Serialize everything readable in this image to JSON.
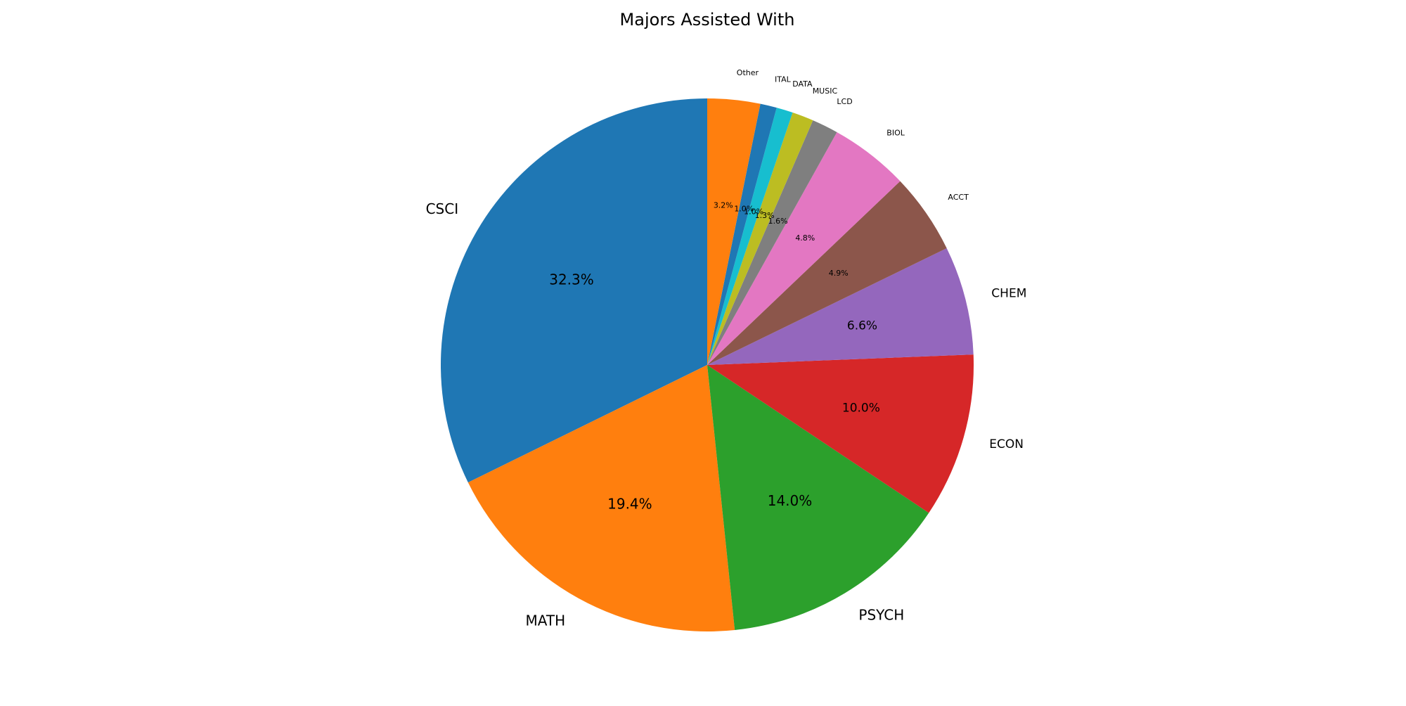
{
  "chart_data": {
    "type": "pie",
    "title": "Majors Assisted With",
    "start_angle_deg": 90,
    "direction": "counterclockwise",
    "legend": "none",
    "categories": [
      "CSCI",
      "MATH",
      "PSYCH",
      "ECON",
      "CHEM",
      "ACCT",
      "BIOL",
      "LCD",
      "MUSIC",
      "DATA",
      "ITAL",
      "Other"
    ],
    "values": [
      32.3,
      19.4,
      14.0,
      10.0,
      6.6,
      4.9,
      4.8,
      1.6,
      1.3,
      1.0,
      1.0,
      3.2
    ],
    "pct_labels": [
      "32.3%",
      "19.4%",
      "14.0%",
      "10.0%",
      "6.6%",
      "4.9%",
      "4.8%",
      "1.6%",
      "1.3%",
      "1.0%",
      "1.0%",
      "3.2%"
    ],
    "colors": [
      "#1f77b4",
      "#ff7f0e",
      "#2ca02c",
      "#d62728",
      "#9467bd",
      "#8c564b",
      "#e377c2",
      "#7f7f7f",
      "#bcbd22",
      "#17becf",
      "#1f77b4",
      "#ff7f0e"
    ]
  }
}
